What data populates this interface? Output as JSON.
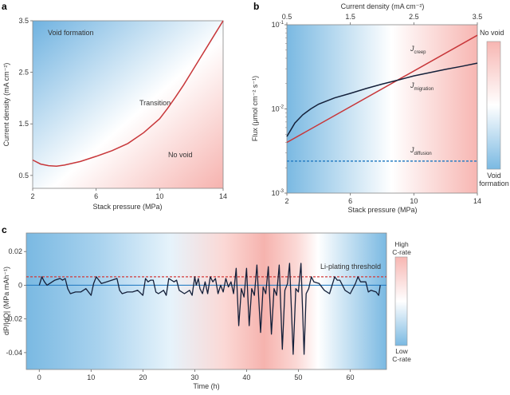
{
  "chart_data": [
    {
      "panel": "a",
      "type": "line",
      "xlabel": "Stack pressure (MPa)",
      "ylabel": "Current density (mA cm⁻²)",
      "xlim": [
        2,
        14
      ],
      "ylim": [
        0.25,
        3.5
      ],
      "xticks": [
        2,
        6,
        10,
        14
      ],
      "yticks": [
        0.5,
        1.5,
        2.5,
        3.5
      ],
      "annotations": {
        "void": "Void formation",
        "transition": "Transition",
        "novoid": "No void"
      },
      "series": [
        {
          "color": "#c8373a",
          "x": [
            2,
            2.5,
            3,
            3.5,
            4,
            5,
            6,
            7,
            8,
            9,
            10,
            10.5,
            11,
            11.5,
            12,
            12.5,
            13,
            13.5,
            14
          ],
          "y": [
            0.8,
            0.72,
            0.69,
            0.68,
            0.7,
            0.77,
            0.87,
            0.98,
            1.12,
            1.33,
            1.6,
            1.8,
            2.02,
            2.25,
            2.5,
            2.75,
            3.0,
            3.25,
            3.5
          ]
        }
      ],
      "background": {
        "low": "#7fbbe3",
        "mid": "#ffffff",
        "high": "#f7b8b4"
      }
    },
    {
      "panel": "b",
      "type": "line",
      "xlabel": "Stack pressure (MPa)",
      "x2label": "Current density (mA cm⁻²)",
      "ylabel": "Flux (μmol cm⁻² s⁻¹)",
      "xlim": [
        2,
        14
      ],
      "x2lim": [
        0.5,
        3.5
      ],
      "ylim": [
        0.001,
        0.1
      ],
      "yscale": "log",
      "xticks": [
        2,
        6,
        10,
        14
      ],
      "x2ticks": [
        0.5,
        1.5,
        2.5,
        3.5
      ],
      "yticks": [
        {
          "base": "10",
          "exp": "-3",
          "value": 0.001
        },
        {
          "base": "10",
          "exp": "-2",
          "value": 0.01
        },
        {
          "base": "10",
          "exp": "-1",
          "value": 0.1
        }
      ],
      "series": [
        {
          "name": "J",
          "sub": "creep",
          "color": "#c8373a",
          "dash": false,
          "x": [
            2,
            14
          ],
          "y": [
            0.004,
            0.075
          ]
        },
        {
          "name": "J",
          "sub": "migration",
          "color": "#14203a",
          "dash": false,
          "x": [
            2,
            2.5,
            3,
            3.5,
            4,
            5,
            6,
            7,
            8,
            9,
            10,
            11,
            12,
            13,
            14
          ],
          "y": [
            0.0047,
            0.0068,
            0.0085,
            0.01,
            0.0114,
            0.0135,
            0.0153,
            0.0175,
            0.0197,
            0.022,
            0.0247,
            0.027,
            0.0295,
            0.032,
            0.035
          ]
        },
        {
          "name": "J",
          "sub": "diffusion",
          "color": "#2a7fc4",
          "dash": true,
          "x": [
            2,
            14
          ],
          "y": [
            0.0024,
            0.0024
          ]
        }
      ],
      "colorbar": {
        "top": "No void",
        "bottom_line1": "Void",
        "bottom_line2": "formation"
      },
      "background": {
        "low": "#7fbbe3",
        "mid": "#ffffff",
        "high": "#f7b8b4"
      }
    },
    {
      "panel": "c",
      "type": "line",
      "xlabel": "Time (h)",
      "ylabel": "dP/|dQ| (MPa mAh⁻¹)",
      "xlim": [
        -2.5,
        67
      ],
      "ylim": [
        -0.05,
        0.031
      ],
      "xticks": [
        0,
        10,
        20,
        30,
        40,
        50,
        60
      ],
      "yticks": [
        -0.04,
        -0.02,
        0,
        0.02
      ],
      "ytick_labels": [
        "-0.04",
        "-0.02",
        "0",
        "0.02"
      ],
      "threshold": {
        "value": 0.005,
        "label": "Li-plating threshold",
        "color": "#d23a3a"
      },
      "zero_line_color": "#2a7fc4",
      "colorbar": {
        "top_line1": "High",
        "top_line2": "C-rate",
        "bottom_line1": "Low",
        "bottom_line2": "C-rate"
      },
      "series": [
        {
          "color": "#14203a",
          "x": [
            0,
            0.5,
            1,
            1.5,
            2,
            3,
            4,
            4.5,
            5,
            5.5,
            6,
            7,
            8,
            9,
            10,
            10.5,
            11,
            12,
            13,
            14,
            15,
            15.5,
            16,
            17,
            18,
            19,
            20,
            20.5,
            21,
            21.5,
            22,
            22.5,
            23,
            24,
            24.5,
            25,
            26,
            26.5,
            27,
            28,
            29,
            29.5,
            30,
            30.3,
            30.7,
            31,
            31.5,
            32,
            32.5,
            33,
            33.5,
            34,
            34.5,
            35,
            35.5,
            36,
            36.5,
            37,
            37.5,
            38,
            38.5,
            39,
            39.5,
            40,
            40.5,
            41,
            41.5,
            42,
            42.7,
            43.2,
            43.7,
            44.2,
            44.8,
            45.3,
            45.8,
            46.3,
            46.9,
            47.4,
            47.9,
            48.3,
            49,
            49.5,
            50,
            50.5,
            51.1,
            51.5,
            52,
            52.5,
            53,
            54,
            55,
            56,
            57,
            57.5,
            58,
            59,
            60,
            61,
            61.5,
            62,
            63,
            63.5,
            64,
            65,
            65.5,
            65.8
          ],
          "y": [
            0,
            0.005,
            0.002,
            0,
            0.001,
            0.003,
            0.004,
            0.003,
            0.004,
            -0.002,
            -0.005,
            -0.004,
            -0.004,
            -0.002,
            -0.006,
            0.001,
            0.005,
            0.001,
            0.002,
            0.003,
            0.004,
            -0.003,
            -0.005,
            -0.004,
            -0.004,
            -0.003,
            -0.006,
            0.004,
            0.002,
            0.003,
            0.003,
            -0.004,
            -0.005,
            -0.003,
            -0.006,
            0.004,
            0.002,
            0.003,
            -0.003,
            -0.005,
            -0.003,
            -0.006,
            0.005,
            0,
            0.004,
            -0.002,
            -0.005,
            0.002,
            -0.005,
            0.005,
            0.002,
            0.004,
            -0.005,
            0,
            -0.004,
            0.004,
            -0.001,
            0.002,
            -0.005,
            0.01,
            -0.024,
            -0.002,
            -0.007,
            0.01,
            -0.024,
            -0.002,
            -0.006,
            0.012,
            -0.028,
            -0.001,
            -0.005,
            0.011,
            -0.029,
            -0.002,
            -0.006,
            0.012,
            -0.038,
            -0.003,
            0.001,
            0.013,
            -0.041,
            -0.002,
            -0.004,
            0.013,
            -0.041,
            -0.005,
            -0.002,
            0.005,
            0.002,
            0.001,
            -0.003,
            -0.005,
            0.005,
            0.003,
            0.003,
            -0.003,
            -0.005,
            0.001,
            0.005,
            0.002,
            0.002,
            -0.004,
            -0.003,
            -0.004,
            -0.006,
            0
          ]
        }
      ],
      "background": {
        "low": "#7fbbe3",
        "mid": "#ffffff",
        "high": "#f7b8b4"
      }
    }
  ],
  "panel_labels": {
    "a": "a",
    "b": "b",
    "c": "c"
  }
}
